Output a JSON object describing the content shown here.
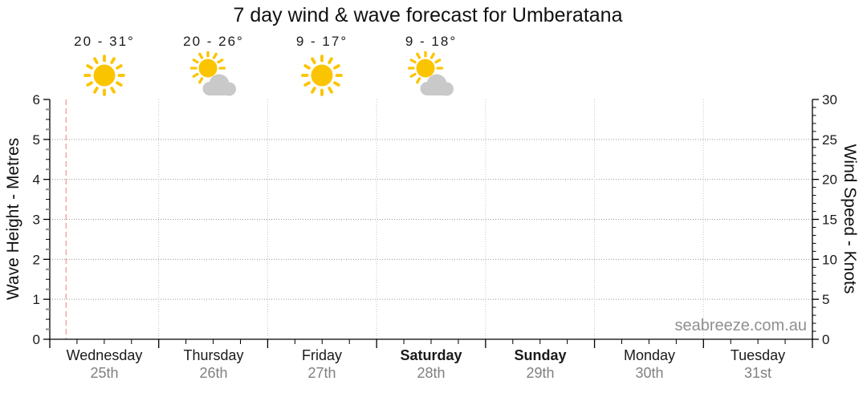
{
  "title": "7 day wind & wave forecast for Umberatana",
  "watermark": "seabreeze.com.au",
  "days": [
    {
      "name": "Wednesday",
      "date": "25th",
      "bold": false,
      "temp": "20 - 31°",
      "icon": "sunny"
    },
    {
      "name": "Thursday",
      "date": "26th",
      "bold": false,
      "temp": "20 - 26°",
      "icon": "sun-cloud"
    },
    {
      "name": "Friday",
      "date": "27th",
      "bold": false,
      "temp": "9 - 17°",
      "icon": "sunny"
    },
    {
      "name": "Saturday",
      "date": "28th",
      "bold": true,
      "temp": "9 - 18°",
      "icon": "sun-cloud"
    },
    {
      "name": "Sunday",
      "date": "29th",
      "bold": true,
      "temp": null,
      "icon": null
    },
    {
      "name": "Monday",
      "date": "30th",
      "bold": false,
      "temp": null,
      "icon": null
    },
    {
      "name": "Tuesday",
      "date": "31st",
      "bold": false,
      "temp": null,
      "icon": null
    }
  ],
  "chart_data": {
    "type": "line",
    "title": "7 day wind & wave forecast for Umberatana",
    "series": [],
    "note": "plot area is empty - no wind or wave series are drawn, only axes, gridlines and a current-time marker",
    "x_axis": {
      "tick_labels": [
        "Wednesday",
        "Thursday",
        "Friday",
        "Saturday",
        "Sunday",
        "Monday",
        "Tuesday"
      ],
      "sub_labels": [
        "25th",
        "26th",
        "27th",
        "28th",
        "29th",
        "30th",
        "31st"
      ],
      "days": 7,
      "minor_ticks_per_day": 4
    },
    "y_left": {
      "label": "Wave Height - Metres",
      "range": [
        0,
        6
      ],
      "major_step": 1,
      "minor_step": 0.25
    },
    "y_right": {
      "label": "Wind Speed - Knots",
      "range": [
        0,
        30
      ],
      "major_step": 5,
      "minor_step": 1
    },
    "grid": true,
    "legend": false,
    "annotations": {
      "current_time_line_day_fraction": 0.15,
      "per_day_headers": [
        {
          "day": "Wednesday",
          "temps": "20 - 31°",
          "icon": "sunny"
        },
        {
          "day": "Thursday",
          "temps": "20 - 26°",
          "icon": "sun-cloud"
        },
        {
          "day": "Friday",
          "temps": "9 - 17°",
          "icon": "sunny"
        },
        {
          "day": "Saturday",
          "temps": "9 - 18°",
          "icon": "sun-cloud"
        }
      ]
    }
  },
  "colors": {
    "sun": "#FBC400",
    "cloud": "#C9C9C9",
    "grid": "#999999",
    "day_divider": "#C4C4C4",
    "now_line": "#F5A9A9",
    "minor_tick_gray": "#8C8C8C",
    "axis": "#000000",
    "tick_label": "#1a1a1a",
    "date_text": "#808080",
    "watermark": "#8F8F8F"
  }
}
